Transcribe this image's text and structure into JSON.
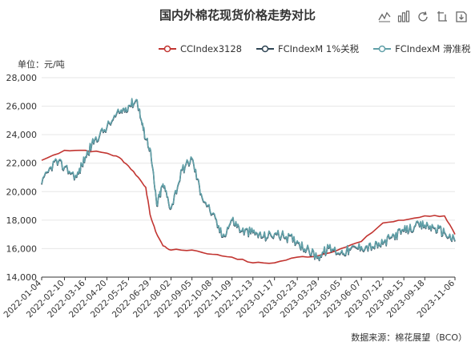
{
  "title": "国内外棉花现货价格走势对比",
  "unit_label": "单位：元/吨",
  "source": "数据来源：棉花展望（BCO）",
  "toolbox": [
    {
      "name": "line-type-icon"
    },
    {
      "name": "bar-type-icon"
    },
    {
      "name": "restore-icon"
    },
    {
      "name": "save-image-icon"
    },
    {
      "name": "refresh-icon"
    }
  ],
  "colors": {
    "cc": "#c23531",
    "fc1": "#2f4554",
    "fc2": "#61a0a8",
    "grid": "#e6e6e6",
    "axis": "#333333"
  },
  "chart_data": {
    "type": "line",
    "title": "国内外棉花现货价格走势对比",
    "ylabel": "单位：元/吨",
    "ylim": [
      14000,
      28000
    ],
    "yticks": [
      14000,
      16000,
      18000,
      20000,
      22000,
      24000,
      26000,
      28000
    ],
    "ytick_labels": [
      "14,000",
      "16,000",
      "18,000",
      "20,000",
      "22,000",
      "24,000",
      "26,000",
      "28,000"
    ],
    "xtick_labels": [
      "2022-01-04",
      "2022-02-10",
      "2022-03-16",
      "2022-04-20",
      "2022-05-25",
      "2022-06-29",
      "2022-08-02",
      "2022-09-05",
      "2022-10-08",
      "2022-11-09",
      "2022-12-13",
      "2023-01-17",
      "2023-02-23",
      "2023-03-29",
      "2023-05-05",
      "2023-06-07",
      "2023-07-12",
      "2023-08-15",
      "2023-09-18",
      "2023-11-06"
    ],
    "legend_position": "top-center",
    "series": [
      {
        "name": "CCIndex3128",
        "color": "#c23531",
        "x": [
          "2022-01-04",
          "2022-02-10",
          "2022-03-16",
          "2022-04-20",
          "2022-05-10",
          "2022-05-25",
          "2022-06-10",
          "2022-06-22",
          "2022-06-29",
          "2022-07-08",
          "2022-07-20",
          "2022-08-02",
          "2022-09-05",
          "2022-10-08",
          "2022-11-09",
          "2022-12-13",
          "2023-01-17",
          "2023-02-23",
          "2023-03-29",
          "2023-05-05",
          "2023-06-07",
          "2023-07-12",
          "2023-08-15",
          "2023-09-18",
          "2023-10-20",
          "2023-11-06"
        ],
        "values": [
          22200,
          22900,
          22900,
          22700,
          22400,
          21800,
          21000,
          20300,
          18400,
          17200,
          16200,
          15900,
          15900,
          15600,
          15400,
          15000,
          15000,
          15400,
          15500,
          16000,
          16500,
          17800,
          18000,
          18300,
          18300,
          17000
        ]
      },
      {
        "name": "FCIndexM 1%关税",
        "color": "#2f4554",
        "x": [
          "2022-01-04",
          "2022-01-25",
          "2022-02-10",
          "2022-03-02",
          "2022-03-16",
          "2022-03-31",
          "2022-04-20",
          "2022-05-10",
          "2022-05-25",
          "2022-06-08",
          "2022-06-18",
          "2022-06-29",
          "2022-07-10",
          "2022-07-20",
          "2022-08-02",
          "2022-08-20",
          "2022-09-05",
          "2022-09-20",
          "2022-10-08",
          "2022-10-25",
          "2022-11-09",
          "2022-11-25",
          "2022-12-13",
          "2022-12-30",
          "2023-01-17",
          "2023-02-05",
          "2023-02-23",
          "2023-03-10",
          "2023-03-29",
          "2023-04-15",
          "2023-05-05",
          "2023-05-20",
          "2023-06-07",
          "2023-06-25",
          "2023-07-12",
          "2023-07-30",
          "2023-08-15",
          "2023-09-01",
          "2023-09-18",
          "2023-10-05",
          "2023-10-20",
          "2023-11-06"
        ],
        "values": [
          20500,
          22100,
          21700,
          21000,
          22400,
          23600,
          24500,
          25500,
          26000,
          26400,
          24300,
          23000,
          19000,
          20500,
          18800,
          21500,
          22300,
          19800,
          18400,
          16800,
          18000,
          17200,
          17100,
          16800,
          17000,
          16800,
          16500,
          15900,
          15400,
          16000,
          15700,
          15900,
          16100,
          16100,
          16300,
          16900,
          17200,
          17500,
          17600,
          17400,
          17100,
          16500
        ]
      },
      {
        "name": "FCIndexM 滑准税",
        "color": "#61a0a8",
        "x": [
          "2022-01-04",
          "2022-01-25",
          "2022-02-10",
          "2022-03-02",
          "2022-03-16",
          "2022-03-31",
          "2022-04-20",
          "2022-05-10",
          "2022-05-25",
          "2022-06-08",
          "2022-06-18",
          "2022-06-29",
          "2022-07-10",
          "2022-07-20",
          "2022-08-02",
          "2022-08-20",
          "2022-09-05",
          "2022-09-20",
          "2022-10-08",
          "2022-10-25",
          "2022-11-09",
          "2022-11-25",
          "2022-12-13",
          "2022-12-30",
          "2023-01-17",
          "2023-02-05",
          "2023-02-23",
          "2023-03-10",
          "2023-03-29",
          "2023-04-15",
          "2023-05-05",
          "2023-05-20",
          "2023-06-07",
          "2023-06-25",
          "2023-07-12",
          "2023-07-30",
          "2023-08-15",
          "2023-09-01",
          "2023-09-18",
          "2023-10-05",
          "2023-10-20",
          "2023-11-06"
        ],
        "values": [
          20550,
          22150,
          21750,
          21050,
          22450,
          23650,
          24550,
          25550,
          26050,
          26450,
          24350,
          23050,
          19050,
          20550,
          18850,
          21550,
          22350,
          19850,
          18450,
          16850,
          18050,
          17250,
          17150,
          16850,
          17050,
          16850,
          16550,
          15950,
          15450,
          16050,
          15750,
          15950,
          16150,
          16150,
          16350,
          16950,
          17250,
          17550,
          17650,
          17450,
          17150,
          16550
        ]
      }
    ]
  }
}
